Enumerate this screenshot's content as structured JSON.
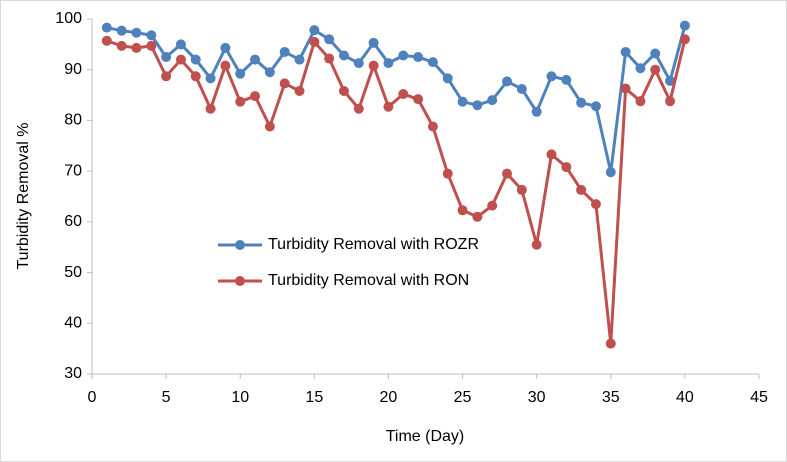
{
  "chart_data": {
    "type": "line",
    "x_label": "Time (Day)",
    "y_label": "Turbidity Removal %",
    "x": [
      1,
      2,
      3,
      4,
      5,
      6,
      7,
      8,
      9,
      10,
      11,
      12,
      13,
      14,
      15,
      16,
      17,
      18,
      19,
      20,
      21,
      22,
      23,
      24,
      25,
      26,
      27,
      28,
      29,
      30,
      31,
      32,
      33,
      34,
      35,
      36,
      37,
      38,
      39,
      40
    ],
    "series": [
      {
        "name": "Turbidity Removal with ROZR",
        "color": "#4f81bd",
        "values": [
          98.3,
          97.7,
          97.3,
          96.8,
          92.5,
          95,
          92,
          88.3,
          94.3,
          89.2,
          92,
          89.5,
          93.5,
          92,
          97.8,
          96,
          92.8,
          91.3,
          95.3,
          91.3,
          92.8,
          92.5,
          91.5,
          88.3,
          83.7,
          83,
          84,
          87.7,
          86.2,
          81.7,
          88.7,
          88,
          83.5,
          82.8,
          69.8,
          93.5,
          90.3,
          93.2,
          87.8,
          98.7
        ]
      },
      {
        "name": "Turbidity Removal with RON",
        "color": "#c0504d",
        "values": [
          95.7,
          94.7,
          94.3,
          94.7,
          88.7,
          92,
          88.7,
          82.3,
          90.8,
          83.7,
          84.8,
          78.8,
          87.3,
          85.8,
          95.5,
          92.2,
          85.8,
          82.3,
          90.8,
          82.7,
          85.2,
          84.2,
          78.8,
          69.5,
          62.3,
          61,
          63.2,
          69.5,
          66.3,
          55.5,
          73.3,
          70.8,
          66.3,
          63.5,
          36,
          86.3,
          83.8,
          90,
          83.8,
          96
        ]
      }
    ],
    "xlim": [
      0,
      45
    ],
    "xticks": [
      0,
      5,
      10,
      15,
      20,
      25,
      30,
      35,
      40,
      45
    ],
    "ylim": [
      30,
      100
    ],
    "yticks": [
      30,
      40,
      50,
      60,
      70,
      80,
      90,
      100
    ],
    "grid": false,
    "legend": "center-left"
  }
}
